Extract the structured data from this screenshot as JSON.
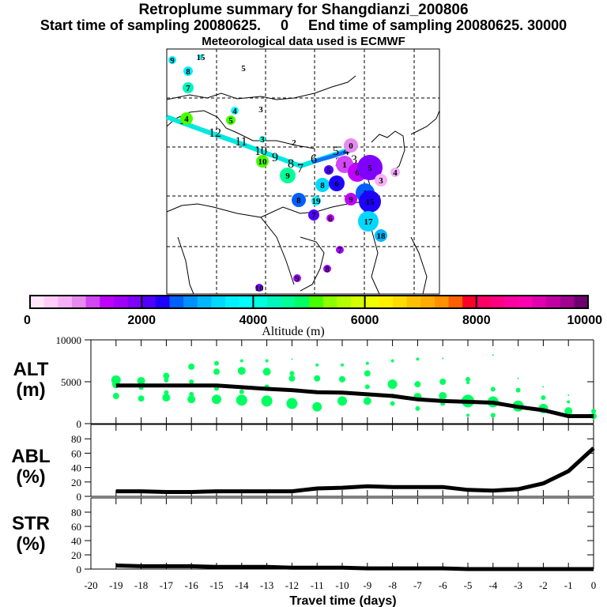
{
  "titles": {
    "main": "Retroplume summary for Shangdianzi_200806",
    "sampling": "Start time of sampling 20080625.     0     End time of sampling 20080625. 30000",
    "met": "Meteorological data used is ECMWF"
  },
  "colorbar": {
    "label": "Altitude (m)",
    "ticks": [
      "0",
      "2000",
      "4000",
      "6000",
      "8000",
      "10000"
    ],
    "range": [
      0,
      10000
    ],
    "colors": [
      "#ffe6fa",
      "#ffccfa",
      "#f5b0f5",
      "#e68af0",
      "#d246f5",
      "#c000ff",
      "#a000ff",
      "#8000ff",
      "#5000ff",
      "#1e00ff",
      "#0060ff",
      "#0090ff",
      "#00b8ff",
      "#00d8ff",
      "#00f0ff",
      "#00ffff",
      "#00ffdc",
      "#00f5c0",
      "#00ff96",
      "#00ff64",
      "#46ff00",
      "#8cff00",
      "#b4ff00",
      "#d4ff00",
      "#eeff00",
      "#fff000",
      "#ffdc00",
      "#ffc000",
      "#ffac00",
      "#ff9000",
      "#ff6000",
      "#ff0028",
      "#ff0064",
      "#ff0080",
      "#ff00a0",
      "#ff00b0",
      "#e000b0",
      "#c000a0",
      "#a00090",
      "#6e0070"
    ]
  },
  "map": {
    "trajectory_labels": [
      "13",
      "12",
      "11",
      "10",
      "9",
      "8",
      "7",
      "6",
      "5",
      "4",
      "3",
      "2",
      "1",
      "0"
    ],
    "clusters": [
      {
        "label": "9",
        "alt": 3600
      },
      {
        "label": "15",
        "alt": 3900
      },
      {
        "label": "8",
        "alt": 3700
      },
      {
        "label": "5",
        "alt": 4000
      },
      {
        "label": "7",
        "alt": 4300
      },
      {
        "label": "4",
        "alt": 3800
      },
      {
        "label": "3",
        "alt": 4400
      },
      {
        "label": "4",
        "alt": 5000
      },
      {
        "label": "5",
        "alt": 5100
      },
      {
        "label": "2",
        "alt": 5000
      },
      {
        "label": "3",
        "alt": 4100
      },
      {
        "label": "10",
        "alt": 5200
      },
      {
        "label": "9",
        "alt": 4500
      },
      {
        "label": "8",
        "alt": 3400
      },
      {
        "label": "6",
        "alt": 2300
      },
      {
        "label": "8",
        "alt": 2600
      },
      {
        "label": "19",
        "alt": 3600
      },
      {
        "label": "7",
        "alt": 2100
      },
      {
        "label": "0",
        "alt": 800
      },
      {
        "label": "1",
        "alt": 1100
      },
      {
        "label": "5",
        "alt": 2000
      },
      {
        "label": "6",
        "alt": 1300
      },
      {
        "label": "5",
        "alt": 1800
      },
      {
        "label": "3",
        "alt": 600
      },
      {
        "label": "4",
        "alt": 600
      },
      {
        "label": "1",
        "alt": 2700
      },
      {
        "label": "15",
        "alt": 2400
      },
      {
        "label": "9",
        "alt": 1300
      },
      {
        "label": "6",
        "alt": 1400
      },
      {
        "label": "17",
        "alt": 3300
      },
      {
        "label": "18",
        "alt": 3000
      },
      {
        "label": "7",
        "alt": 1500
      },
      {
        "label": "8",
        "alt": 1600
      },
      {
        "label": "9",
        "alt": 1500
      },
      {
        "label": "10",
        "alt": 1800
      }
    ]
  },
  "chart_data": [
    {
      "type": "scatter+line",
      "panel": "ALT",
      "ylabel": "ALT\n(m)",
      "ylabel_line1": "ALT",
      "ylabel_line2": "(m)",
      "ylim": [
        0,
        10000
      ],
      "yticks": [
        "0",
        "5000",
        "10000"
      ],
      "x": [
        -19,
        -18,
        -17,
        -16,
        -15,
        -14,
        -13,
        -12,
        -11,
        -10,
        -9,
        -8,
        -7,
        -6,
        -5,
        -4,
        -3,
        -2,
        -1,
        0
      ],
      "median_line": [
        4550,
        4550,
        4550,
        4550,
        4550,
        4350,
        4150,
        4000,
        3750,
        3700,
        3500,
        3300,
        2900,
        2700,
        2600,
        2500,
        2000,
        1600,
        900,
        900
      ],
      "points": [
        {
          "x": -19,
          "y": 5200,
          "s": 6
        },
        {
          "x": -19,
          "y": 4700,
          "s": 5
        },
        {
          "x": -19,
          "y": 3300,
          "s": 4
        },
        {
          "x": -18,
          "y": 5100,
          "s": 5
        },
        {
          "x": -18,
          "y": 4300,
          "s": 3
        },
        {
          "x": -18,
          "y": 3000,
          "s": 4
        },
        {
          "x": -17,
          "y": 5700,
          "s": 4
        },
        {
          "x": -17,
          "y": 5200,
          "s": 3
        },
        {
          "x": -17,
          "y": 3700,
          "s": 3
        },
        {
          "x": -17,
          "y": 3100,
          "s": 5
        },
        {
          "x": -16,
          "y": 6800,
          "s": 4
        },
        {
          "x": -16,
          "y": 5000,
          "s": 3
        },
        {
          "x": -16,
          "y": 3500,
          "s": 3
        },
        {
          "x": -16,
          "y": 2900,
          "s": 5
        },
        {
          "x": -15,
          "y": 7200,
          "s": 3
        },
        {
          "x": -15,
          "y": 6200,
          "s": 4
        },
        {
          "x": -15,
          "y": 4200,
          "s": 3
        },
        {
          "x": -15,
          "y": 2900,
          "s": 6
        },
        {
          "x": -14,
          "y": 7500,
          "s": 2
        },
        {
          "x": -14,
          "y": 6300,
          "s": 5
        },
        {
          "x": -14,
          "y": 3800,
          "s": 3
        },
        {
          "x": -14,
          "y": 2800,
          "s": 7
        },
        {
          "x": -13,
          "y": 7500,
          "s": 2
        },
        {
          "x": -13,
          "y": 6200,
          "s": 5
        },
        {
          "x": -13,
          "y": 4400,
          "s": 3
        },
        {
          "x": -13,
          "y": 2700,
          "s": 7
        },
        {
          "x": -12,
          "y": 7700,
          "s": 1
        },
        {
          "x": -12,
          "y": 6000,
          "s": 3
        },
        {
          "x": -12,
          "y": 5400,
          "s": 4
        },
        {
          "x": -12,
          "y": 2400,
          "s": 7
        },
        {
          "x": -11,
          "y": 7000,
          "s": 2
        },
        {
          "x": -11,
          "y": 5400,
          "s": 4
        },
        {
          "x": -11,
          "y": 2000,
          "s": 6
        },
        {
          "x": -10,
          "y": 7000,
          "s": 2
        },
        {
          "x": -10,
          "y": 5300,
          "s": 4
        },
        {
          "x": -10,
          "y": 2700,
          "s": 6
        },
        {
          "x": -9,
          "y": 7200,
          "s": 2
        },
        {
          "x": -9,
          "y": 6000,
          "s": 4
        },
        {
          "x": -9,
          "y": 4400,
          "s": 3
        },
        {
          "x": -9,
          "y": 2700,
          "s": 5
        },
        {
          "x": -8,
          "y": 7500,
          "s": 2
        },
        {
          "x": -8,
          "y": 4700,
          "s": 6
        },
        {
          "x": -8,
          "y": 3300,
          "s": 3
        },
        {
          "x": -8,
          "y": 2400,
          "s": 3
        },
        {
          "x": -7,
          "y": 7700,
          "s": 2
        },
        {
          "x": -7,
          "y": 4700,
          "s": 4
        },
        {
          "x": -7,
          "y": 3200,
          "s": 5
        },
        {
          "x": -7,
          "y": 1800,
          "s": 3
        },
        {
          "x": -6,
          "y": 7800,
          "s": 1
        },
        {
          "x": -6,
          "y": 5000,
          "s": 4
        },
        {
          "x": -6,
          "y": 3300,
          "s": 5
        },
        {
          "x": -6,
          "y": 2400,
          "s": 3
        },
        {
          "x": -5,
          "y": 5300,
          "s": 3
        },
        {
          "x": -5,
          "y": 4900,
          "s": 2
        },
        {
          "x": -5,
          "y": 2700,
          "s": 8
        },
        {
          "x": -5,
          "y": 1000,
          "s": 2
        },
        {
          "x": -4,
          "y": 8200,
          "s": 1
        },
        {
          "x": -4,
          "y": 4100,
          "s": 3
        },
        {
          "x": -4,
          "y": 2600,
          "s": 7
        },
        {
          "x": -4,
          "y": 1000,
          "s": 3
        },
        {
          "x": -3,
          "y": 5400,
          "s": 1
        },
        {
          "x": -3,
          "y": 4000,
          "s": 3
        },
        {
          "x": -3,
          "y": 2100,
          "s": 7
        },
        {
          "x": -2,
          "y": 4400,
          "s": 1
        },
        {
          "x": -2,
          "y": 3100,
          "s": 3
        },
        {
          "x": -2,
          "y": 1800,
          "s": 6
        },
        {
          "x": -1,
          "y": 3400,
          "s": 1
        },
        {
          "x": -1,
          "y": 2600,
          "s": 2
        },
        {
          "x": -1,
          "y": 1500,
          "s": 5
        },
        {
          "x": 0,
          "y": 1500,
          "s": 3
        },
        {
          "x": 0,
          "y": 900,
          "s": 4
        }
      ]
    },
    {
      "type": "line",
      "panel": "ABL",
      "ylabel_line1": "ABL",
      "ylabel_line2": "(%)",
      "ylim": [
        0,
        100
      ],
      "yticks": [
        "0",
        "20",
        "40",
        "60",
        "80"
      ],
      "x": [
        -19,
        -18,
        -17,
        -16,
        -15,
        -14,
        -13,
        -12,
        -11,
        -10,
        -9,
        -8,
        -7,
        -6,
        -5,
        -4,
        -3,
        -2,
        -1,
        0
      ],
      "values": [
        7,
        7,
        6,
        6,
        7,
        7,
        7,
        7,
        11,
        12,
        14,
        13,
        13,
        13,
        9,
        8,
        10,
        18,
        35,
        67
      ]
    },
    {
      "type": "line",
      "panel": "STR",
      "ylabel_line1": "STR",
      "ylabel_line2": "(%)",
      "ylim": [
        0,
        100
      ],
      "yticks": [
        "0",
        "20",
        "40",
        "60",
        "80"
      ],
      "x": [
        -19,
        -18,
        -17,
        -16,
        -15,
        -14,
        -13,
        -12,
        -11,
        -10,
        -9,
        -8,
        -7,
        -6,
        -5,
        -4,
        -3,
        -2,
        -1,
        0
      ],
      "values": [
        5,
        4,
        4,
        4,
        3,
        3,
        3,
        2,
        2,
        2,
        1,
        1,
        1,
        1,
        0,
        0,
        0,
        0,
        0,
        0
      ]
    }
  ],
  "xaxis": {
    "label": "Travel time (days)",
    "range": [
      -20,
      0
    ],
    "ticks": [
      "-20",
      "-19",
      "-18",
      "-17",
      "-16",
      "-15",
      "-14",
      "-13",
      "-12",
      "-11",
      "-10",
      "-9",
      "-8",
      "-7",
      "-6",
      "-5",
      "-4",
      "-3",
      "-2",
      "-1",
      "0"
    ]
  },
  "colors": {
    "scatter": "#00ff60",
    "line": "#000000"
  }
}
